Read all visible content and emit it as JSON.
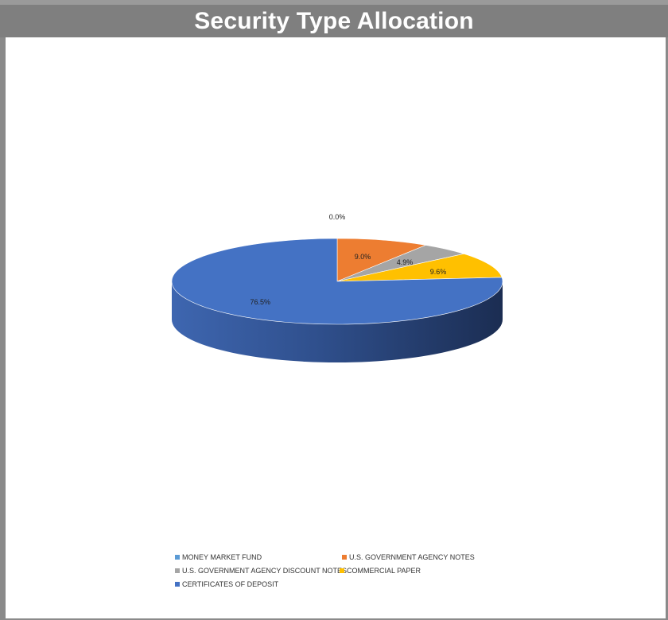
{
  "title": "Security Type Allocation",
  "chart_data": {
    "type": "pie",
    "title": "Security Type Allocation",
    "slices": [
      {
        "name": "MONEY MARKET FUND",
        "value": 0.0,
        "label": "0.0%",
        "color": "#5b9bd5"
      },
      {
        "name": "U.S. GOVERNMENT AGENCY NOTES",
        "value": 9.0,
        "label": "9.0%",
        "color": "#ed7d31"
      },
      {
        "name": "U.S. GOVERNMENT AGENCY DISCOUNT NOTES",
        "value": 4.9,
        "label": "4.9%",
        "color": "#a5a5a5"
      },
      {
        "name": "COMMERCIAL PAPER",
        "value": 9.6,
        "label": "9.6%",
        "color": "#ffc000"
      },
      {
        "name": "CERTIFICATES OF DEPOSIT",
        "value": 76.5,
        "label": "76.5%",
        "color": "#4472c4"
      }
    ],
    "legend_position": "bottom"
  }
}
